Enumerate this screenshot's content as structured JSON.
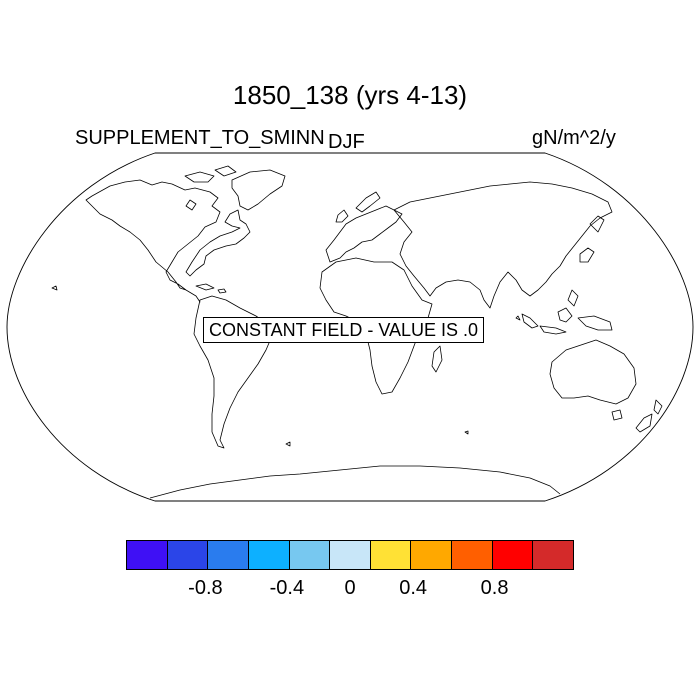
{
  "title": "1850_138 (yrs 4-13)",
  "left_label": "SUPPLEMENT_TO_SMINN",
  "center_label": "DJF",
  "units_label": "gN/m^2/y",
  "message": "CONSTANT FIELD - VALUE IS .0",
  "colorbar": {
    "colors": [
      "#3f10f5",
      "#2b45e8",
      "#2a7cee",
      "#0db0ff",
      "#77c8f0",
      "#c8e6f8",
      "#ffe135",
      "#ffa800",
      "#ff5f00",
      "#ff0000",
      "#d42a2a"
    ],
    "labels": [
      "-0.8",
      "-0.4",
      "0",
      "0.4",
      "0.8"
    ]
  }
}
